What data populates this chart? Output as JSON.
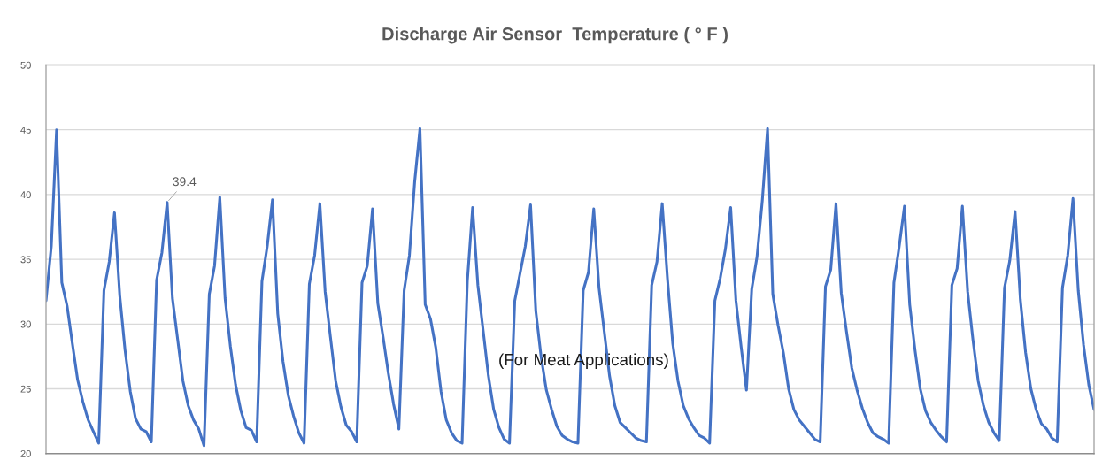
{
  "chart_data": {
    "type": "line",
    "title": "Discharge Air Sensor  Temperature ( ° F )",
    "categories": [
      null,
      null,
      null,
      null,
      null,
      null,
      null,
      null,
      null,
      null,
      null,
      null,
      null,
      null,
      null,
      null,
      null,
      null,
      null,
      null,
      null,
      null,
      null,
      null,
      null,
      null,
      null,
      null,
      null,
      null,
      null,
      null,
      null,
      null,
      null,
      null,
      null,
      null,
      null,
      null,
      null,
      null,
      null,
      null,
      null,
      null,
      null,
      null,
      null,
      null,
      null,
      null,
      null,
      null,
      null,
      null,
      null,
      null,
      null,
      null,
      null,
      null,
      null,
      null,
      null,
      null,
      null,
      null,
      null,
      null,
      null,
      null,
      null,
      null,
      null,
      null,
      null,
      null,
      null,
      null,
      null,
      null,
      null,
      null,
      null,
      null,
      null,
      null,
      null,
      null,
      null,
      null,
      null,
      null,
      null,
      null,
      null,
      null,
      null,
      null,
      null,
      null,
      null,
      null,
      null,
      null,
      null,
      null,
      null,
      null,
      null,
      null,
      null,
      null,
      null,
      null,
      null,
      null,
      null,
      null,
      null,
      null,
      null,
      null,
      null,
      null,
      null,
      null,
      null,
      null,
      null,
      null,
      null,
      null,
      null,
      null,
      null,
      null,
      null,
      null,
      null,
      null,
      null,
      null,
      null,
      null,
      null,
      null,
      null,
      null,
      null,
      null,
      null,
      null,
      null,
      null,
      null,
      null,
      null,
      null,
      null,
      null,
      null,
      null,
      null,
      null,
      null,
      null,
      null,
      null,
      null,
      null,
      null,
      null,
      null,
      null,
      null,
      null,
      null,
      null,
      null,
      null,
      null,
      null,
      null,
      null,
      null,
      null,
      null,
      null,
      null,
      null,
      null,
      null,
      null,
      null,
      null,
      null,
      null,
      null
    ],
    "series": [
      {
        "color": "#4472c4",
        "values": [
          31.8,
          36.0,
          45.0,
          33.2,
          31.4,
          28.5,
          25.7,
          24.0,
          22.6,
          21.7,
          20.8,
          32.6,
          34.8,
          38.6,
          32.2,
          28.0,
          24.8,
          22.7,
          21.9,
          21.7,
          20.9,
          33.4,
          35.5,
          39.4,
          32.0,
          28.8,
          25.6,
          23.7,
          22.6,
          21.9,
          20.6,
          32.3,
          34.5,
          39.8,
          32.0,
          28.3,
          25.3,
          23.3,
          22.0,
          21.8,
          20.9,
          33.3,
          36.0,
          39.6,
          30.8,
          27.1,
          24.5,
          22.9,
          21.6,
          20.8,
          33.1,
          35.3,
          39.3,
          32.5,
          29.0,
          25.6,
          23.6,
          22.2,
          21.7,
          20.9,
          33.2,
          34.5,
          38.9,
          31.6,
          29.0,
          26.2,
          23.8,
          21.9,
          32.6,
          35.3,
          41.0,
          45.1,
          31.5,
          30.4,
          28.2,
          24.8,
          22.6,
          21.6,
          21.0,
          20.8,
          33.3,
          39.0,
          33.0,
          29.5,
          26.0,
          23.4,
          22.0,
          21.1,
          20.8,
          31.8,
          33.9,
          36.0,
          39.2,
          31.0,
          27.5,
          24.9,
          23.4,
          22.1,
          21.4,
          21.1,
          20.9,
          20.8,
          32.6,
          34.0,
          38.9,
          32.8,
          29.4,
          26.0,
          23.7,
          22.4,
          22.0,
          21.6,
          21.2,
          21.0,
          20.9,
          33.0,
          34.8,
          39.3,
          33.5,
          28.5,
          25.6,
          23.7,
          22.7,
          22.0,
          21.4,
          21.2,
          20.8,
          31.8,
          33.5,
          35.8,
          39.0,
          31.8,
          28.2,
          24.9,
          32.7,
          35.2,
          39.5,
          45.1,
          32.3,
          29.9,
          27.8,
          25.0,
          23.4,
          22.6,
          22.1,
          21.6,
          21.1,
          20.9,
          32.9,
          34.2,
          39.3,
          32.4,
          29.4,
          26.6,
          24.9,
          23.5,
          22.4,
          21.6,
          21.3,
          21.1,
          20.8,
          33.2,
          36.0,
          39.1,
          31.5,
          28.0,
          25.0,
          23.3,
          22.4,
          21.8,
          21.3,
          20.9,
          33.0,
          34.3,
          39.1,
          32.5,
          28.8,
          25.6,
          23.7,
          22.4,
          21.6,
          21.0,
          32.8,
          34.9,
          38.7,
          31.9,
          27.8,
          25.0,
          23.4,
          22.3,
          21.9,
          21.2,
          20.9,
          32.8,
          35.3,
          39.7,
          32.6,
          28.4,
          25.3,
          23.4
        ],
        "value_labels": [
          null,
          null,
          null,
          null,
          null,
          null,
          null,
          null,
          null,
          null,
          null,
          null,
          null,
          null,
          null,
          null,
          null,
          null,
          null,
          null,
          null,
          null,
          null,
          "39.4",
          null,
          null,
          null,
          null,
          null,
          null,
          null,
          null,
          null,
          null,
          null,
          null,
          null,
          null,
          null,
          null,
          null,
          null,
          null,
          null,
          null,
          null,
          null,
          null,
          null,
          null,
          null,
          null,
          null,
          null,
          null,
          null,
          null,
          null,
          null,
          null,
          null,
          null,
          null,
          null,
          null,
          null,
          null,
          null,
          null,
          null,
          null,
          null,
          null,
          null,
          null,
          null,
          null,
          null,
          null,
          null,
          null,
          null,
          null,
          null,
          null,
          null,
          null,
          null,
          null,
          null,
          null,
          null,
          null,
          null,
          null,
          null,
          null,
          null,
          null,
          null,
          null,
          null,
          null,
          null,
          null,
          null,
          null,
          null,
          null,
          null,
          null,
          null,
          null,
          null,
          null,
          null,
          null,
          null,
          null,
          null,
          null,
          null,
          null,
          null,
          null,
          null,
          null,
          null,
          null,
          null,
          null,
          null,
          null,
          null,
          null,
          null,
          null,
          null,
          null,
          null,
          null,
          null,
          null,
          null,
          null,
          null,
          null,
          null,
          null,
          null,
          null,
          null,
          null,
          null,
          null,
          null,
          null,
          null,
          null,
          null,
          null,
          null,
          null,
          null,
          null,
          null,
          null,
          null,
          null,
          null,
          null,
          null,
          null,
          null,
          null,
          null,
          null,
          null,
          null,
          null,
          null,
          null,
          null,
          null,
          null,
          null,
          null,
          null,
          null,
          null,
          null,
          null,
          null,
          null,
          null,
          null,
          null,
          null,
          null,
          null
        ]
      }
    ],
    "ylim": [
      20,
      50
    ],
    "yticks": [
      20,
      25,
      30,
      35,
      40,
      45,
      50
    ],
    "grid": "y",
    "line_style": "solid",
    "tick_labels": "y",
    "annotations": [
      "(For Meat Applications)"
    ]
  }
}
